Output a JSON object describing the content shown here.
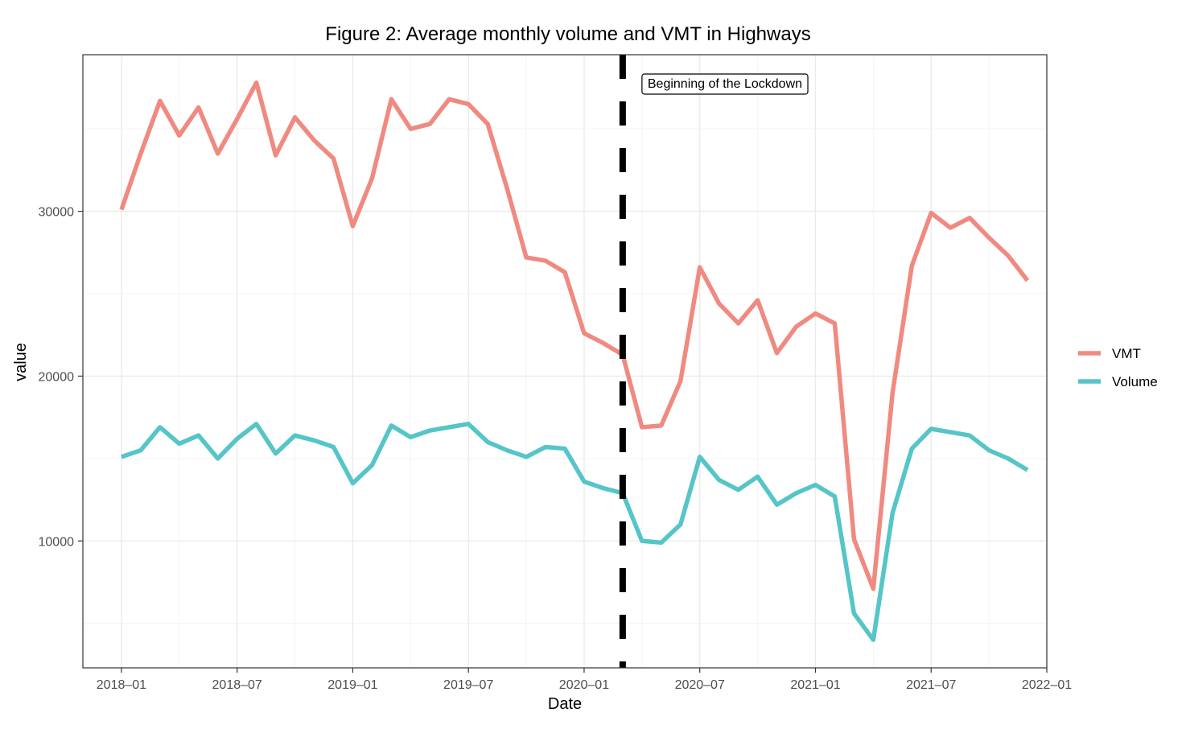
{
  "chart_data": {
    "type": "line",
    "title": "Figure 2: Average monthly volume and VMT in Highways",
    "xlabel": "Date",
    "ylabel": "value",
    "x": [
      "2018-01",
      "2018-02",
      "2018-03",
      "2018-04",
      "2018-05",
      "2018-06",
      "2018-07",
      "2018-08",
      "2018-09",
      "2018-10",
      "2018-11",
      "2018-12",
      "2019-01",
      "2019-02",
      "2019-03",
      "2019-04",
      "2019-05",
      "2019-06",
      "2019-07",
      "2019-08",
      "2019-09",
      "2019-10",
      "2019-11",
      "2019-12",
      "2020-01",
      "2020-02",
      "2020-03",
      "2020-04",
      "2020-05",
      "2020-06",
      "2020-07",
      "2020-08",
      "2020-09",
      "2020-10",
      "2020-11",
      "2020-12",
      "2021-01",
      "2021-02",
      "2021-03",
      "2021-04",
      "2021-05",
      "2021-06",
      "2021-07",
      "2021-08",
      "2021-09",
      "2021-10",
      "2021-11",
      "2021-12"
    ],
    "series": [
      {
        "name": "VMT",
        "color": "#F08A80",
        "values": [
          30100,
          33500,
          36700,
          34600,
          36300,
          33500,
          35600,
          37800,
          33400,
          35700,
          34300,
          33200,
          29100,
          32000,
          36800,
          35000,
          35300,
          36800,
          36500,
          35300,
          31400,
          27200,
          27000,
          26300,
          22600,
          22000,
          21300,
          16900,
          17000,
          19700,
          26600,
          24400,
          23200,
          24600,
          21400,
          23000,
          23800,
          23200,
          10100,
          7100,
          19000,
          26700,
          29900,
          29000,
          29600,
          28400,
          27300,
          25800
        ]
      },
      {
        "name": "Volume",
        "color": "#55C5C8",
        "values": [
          15100,
          15500,
          16900,
          15900,
          16400,
          15000,
          16200,
          17100,
          15300,
          16400,
          16100,
          15700,
          13500,
          14600,
          17000,
          16300,
          16700,
          16900,
          17100,
          16000,
          15500,
          15100,
          15700,
          15600,
          13600,
          13200,
          12900,
          10000,
          9900,
          11000,
          15100,
          13700,
          13100,
          13900,
          12200,
          12900,
          13400,
          12700,
          5600,
          4000,
          11700,
          15600,
          16800,
          16600,
          16400,
          15500,
          15000,
          14300
        ]
      }
    ],
    "x_tick_labels": [
      "2018–01",
      "2018–07",
      "2019–01",
      "2019–07",
      "2020–01",
      "2020–07",
      "2021–01",
      "2021–07",
      "2022–01"
    ],
    "x_tick_dates": [
      "2018-01",
      "2018-07",
      "2019-01",
      "2019-07",
      "2020-01",
      "2020-07",
      "2021-01",
      "2021-07",
      "2022-01"
    ],
    "xlim": [
      "2017-11",
      "2022-01"
    ],
    "y_ticks": [
      10000,
      20000,
      30000
    ],
    "y_tick_labels": [
      "10000",
      "20000",
      "30000"
    ],
    "ylim": [
      2300,
      39500
    ],
    "grid": true,
    "legend_position": "right",
    "vline": {
      "x": "2020-03",
      "style": "dashed",
      "color": "#000000"
    },
    "annotation": {
      "text": "Beginning of the Lockdown",
      "x": "2020-03"
    }
  }
}
